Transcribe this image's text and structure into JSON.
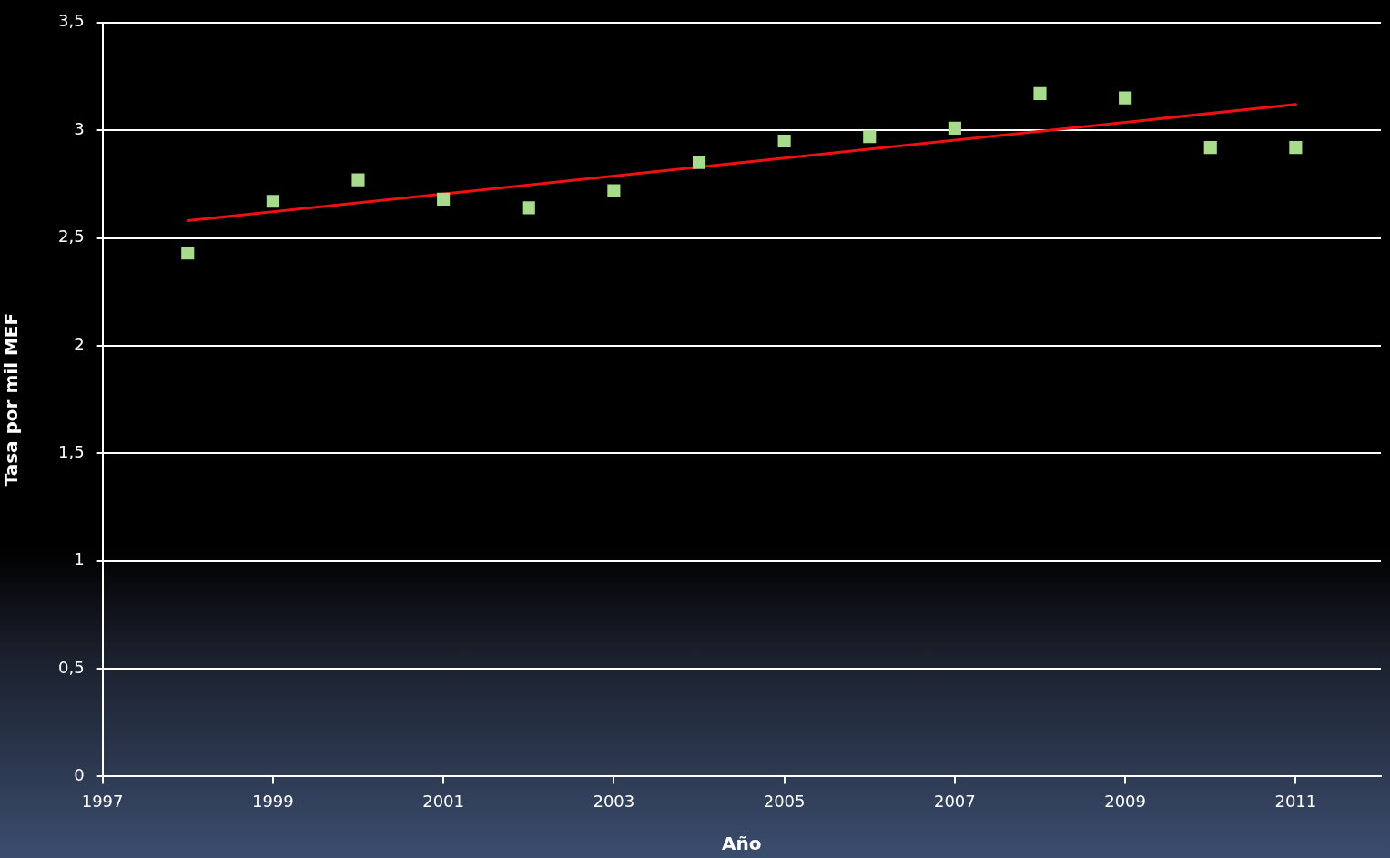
{
  "chart_data": {
    "type": "scatter",
    "xlabel": "Año",
    "ylabel": "Tasa por mil MEF",
    "series": [
      {
        "type": "scatter",
        "color": "#a8dc8c",
        "marker": "square",
        "x": [
          1998,
          1999,
          2000,
          2001,
          2002,
          2003,
          2004,
          2005,
          2006,
          2007,
          2008,
          2009,
          2010,
          2011
        ],
        "values": [
          2.43,
          2.67,
          2.77,
          2.68,
          2.64,
          2.72,
          2.85,
          2.95,
          2.97,
          3.01,
          3.17,
          3.15,
          2.92,
          2.92
        ]
      },
      {
        "type": "line",
        "color": "#ee1111",
        "marker": "none",
        "x": [
          1998,
          2011
        ],
        "values": [
          2.58,
          3.12
        ]
      }
    ],
    "xlim": [
      1997,
      2012
    ],
    "xticks": [
      1997,
      1999,
      2001,
      2003,
      2005,
      2007,
      2009,
      2011
    ],
    "ylim": [
      0,
      3.5
    ],
    "yticks": [
      0,
      {
        "value": 0.5,
        "label": "0,5"
      },
      1,
      {
        "value": 1.5,
        "label": "1,5"
      },
      2,
      {
        "value": 2.5,
        "label": "2,5"
      },
      3,
      {
        "value": 3.5,
        "label": "3,5"
      }
    ],
    "grid": "y",
    "legend": false
  }
}
